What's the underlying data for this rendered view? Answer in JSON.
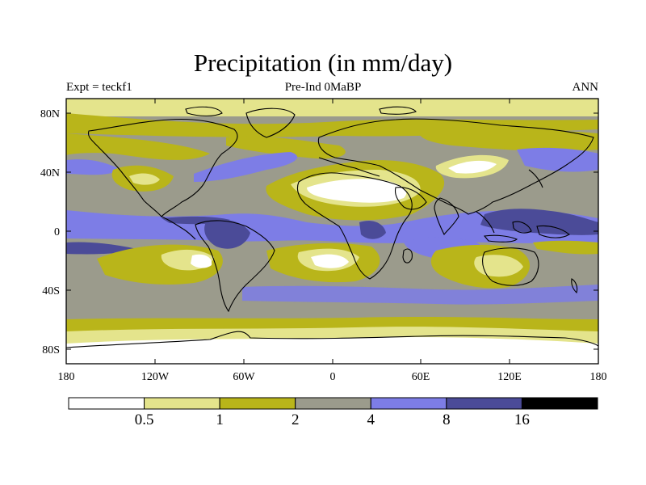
{
  "title": "Precipitation (in mm/day)",
  "subtitle_left": "Expt = teckf1",
  "subtitle_center": "Pre-Ind 0MaBP",
  "subtitle_right": "ANN",
  "lat_ticks": [
    "80N",
    "40N",
    "0",
    "40S",
    "80S"
  ],
  "lon_ticks": [
    "180",
    "120W",
    "60W",
    "0",
    "60E",
    "120E",
    "180"
  ],
  "colorbar": {
    "colors": [
      "#ffffff",
      "#e4e48c",
      "#b9b51a",
      "#9b9b8c",
      "#7d7de6",
      "#4b4b98",
      "#000000"
    ],
    "labels": [
      "0.5",
      "1",
      "2",
      "4",
      "8",
      "16"
    ]
  }
}
